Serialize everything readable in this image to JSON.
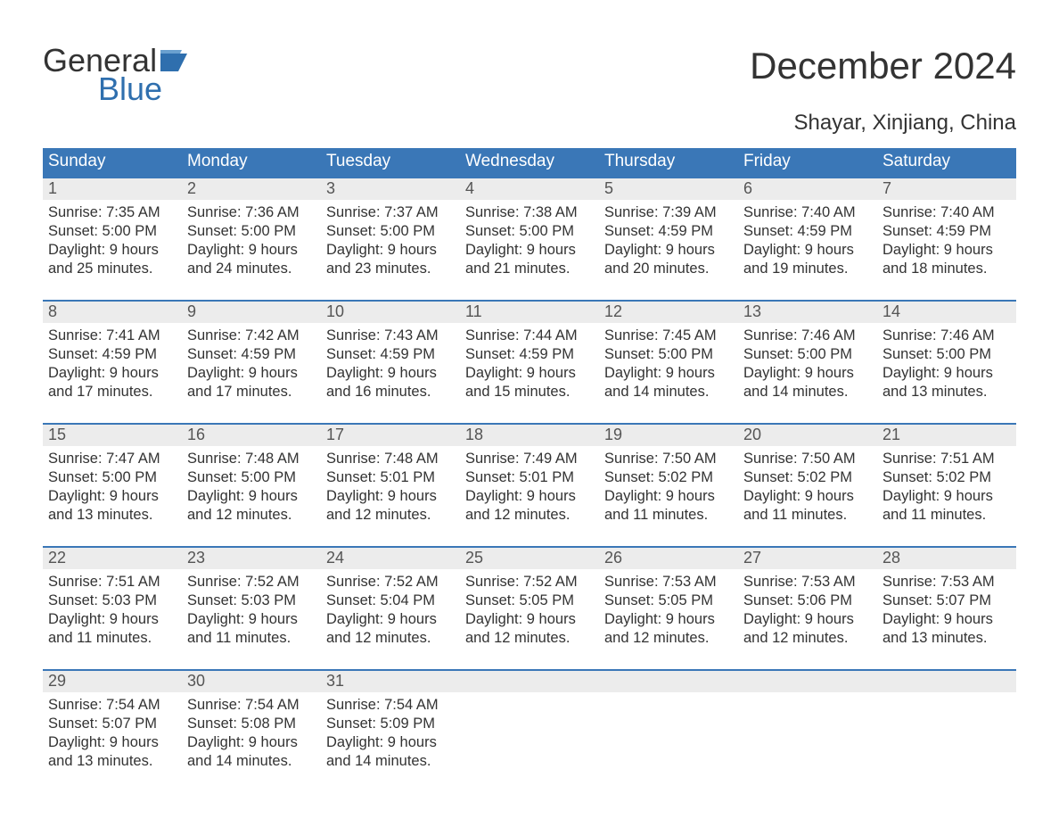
{
  "logo": {
    "word1": "General",
    "word2": "Blue",
    "flag_color": "#2f6fae"
  },
  "title": "December 2024",
  "subtitle": "Shayar, Xinjiang, China",
  "colors": {
    "header_bg": "#3a77b7",
    "header_text": "#ffffff",
    "daynum_bg": "#ececec",
    "daynum_text": "#555555",
    "body_text": "#333333",
    "rule": "#3a77b7",
    "page_bg": "#ffffff",
    "logo_blue": "#2f6fae"
  },
  "dow": [
    "Sunday",
    "Monday",
    "Tuesday",
    "Wednesday",
    "Thursday",
    "Friday",
    "Saturday"
  ],
  "weeks": [
    [
      {
        "n": "1",
        "sr": "7:35 AM",
        "ss": "5:00 PM",
        "dl": "9 hours and 25 minutes."
      },
      {
        "n": "2",
        "sr": "7:36 AM",
        "ss": "5:00 PM",
        "dl": "9 hours and 24 minutes."
      },
      {
        "n": "3",
        "sr": "7:37 AM",
        "ss": "5:00 PM",
        "dl": "9 hours and 23 minutes."
      },
      {
        "n": "4",
        "sr": "7:38 AM",
        "ss": "5:00 PM",
        "dl": "9 hours and 21 minutes."
      },
      {
        "n": "5",
        "sr": "7:39 AM",
        "ss": "4:59 PM",
        "dl": "9 hours and 20 minutes."
      },
      {
        "n": "6",
        "sr": "7:40 AM",
        "ss": "4:59 PM",
        "dl": "9 hours and 19 minutes."
      },
      {
        "n": "7",
        "sr": "7:40 AM",
        "ss": "4:59 PM",
        "dl": "9 hours and 18 minutes."
      }
    ],
    [
      {
        "n": "8",
        "sr": "7:41 AM",
        "ss": "4:59 PM",
        "dl": "9 hours and 17 minutes."
      },
      {
        "n": "9",
        "sr": "7:42 AM",
        "ss": "4:59 PM",
        "dl": "9 hours and 17 minutes."
      },
      {
        "n": "10",
        "sr": "7:43 AM",
        "ss": "4:59 PM",
        "dl": "9 hours and 16 minutes."
      },
      {
        "n": "11",
        "sr": "7:44 AM",
        "ss": "4:59 PM",
        "dl": "9 hours and 15 minutes."
      },
      {
        "n": "12",
        "sr": "7:45 AM",
        "ss": "5:00 PM",
        "dl": "9 hours and 14 minutes."
      },
      {
        "n": "13",
        "sr": "7:46 AM",
        "ss": "5:00 PM",
        "dl": "9 hours and 14 minutes."
      },
      {
        "n": "14",
        "sr": "7:46 AM",
        "ss": "5:00 PM",
        "dl": "9 hours and 13 minutes."
      }
    ],
    [
      {
        "n": "15",
        "sr": "7:47 AM",
        "ss": "5:00 PM",
        "dl": "9 hours and 13 minutes."
      },
      {
        "n": "16",
        "sr": "7:48 AM",
        "ss": "5:00 PM",
        "dl": "9 hours and 12 minutes."
      },
      {
        "n": "17",
        "sr": "7:48 AM",
        "ss": "5:01 PM",
        "dl": "9 hours and 12 minutes."
      },
      {
        "n": "18",
        "sr": "7:49 AM",
        "ss": "5:01 PM",
        "dl": "9 hours and 12 minutes."
      },
      {
        "n": "19",
        "sr": "7:50 AM",
        "ss": "5:02 PM",
        "dl": "9 hours and 11 minutes."
      },
      {
        "n": "20",
        "sr": "7:50 AM",
        "ss": "5:02 PM",
        "dl": "9 hours and 11 minutes."
      },
      {
        "n": "21",
        "sr": "7:51 AM",
        "ss": "5:02 PM",
        "dl": "9 hours and 11 minutes."
      }
    ],
    [
      {
        "n": "22",
        "sr": "7:51 AM",
        "ss": "5:03 PM",
        "dl": "9 hours and 11 minutes."
      },
      {
        "n": "23",
        "sr": "7:52 AM",
        "ss": "5:03 PM",
        "dl": "9 hours and 11 minutes."
      },
      {
        "n": "24",
        "sr": "7:52 AM",
        "ss": "5:04 PM",
        "dl": "9 hours and 12 minutes."
      },
      {
        "n": "25",
        "sr": "7:52 AM",
        "ss": "5:05 PM",
        "dl": "9 hours and 12 minutes."
      },
      {
        "n": "26",
        "sr": "7:53 AM",
        "ss": "5:05 PM",
        "dl": "9 hours and 12 minutes."
      },
      {
        "n": "27",
        "sr": "7:53 AM",
        "ss": "5:06 PM",
        "dl": "9 hours and 12 minutes."
      },
      {
        "n": "28",
        "sr": "7:53 AM",
        "ss": "5:07 PM",
        "dl": "9 hours and 13 minutes."
      }
    ],
    [
      {
        "n": "29",
        "sr": "7:54 AM",
        "ss": "5:07 PM",
        "dl": "9 hours and 13 minutes."
      },
      {
        "n": "30",
        "sr": "7:54 AM",
        "ss": "5:08 PM",
        "dl": "9 hours and 14 minutes."
      },
      {
        "n": "31",
        "sr": "7:54 AM",
        "ss": "5:09 PM",
        "dl": "9 hours and 14 minutes."
      },
      null,
      null,
      null,
      null
    ]
  ],
  "labels": {
    "sunrise": "Sunrise: ",
    "sunset": "Sunset: ",
    "daylight": "Daylight: "
  }
}
